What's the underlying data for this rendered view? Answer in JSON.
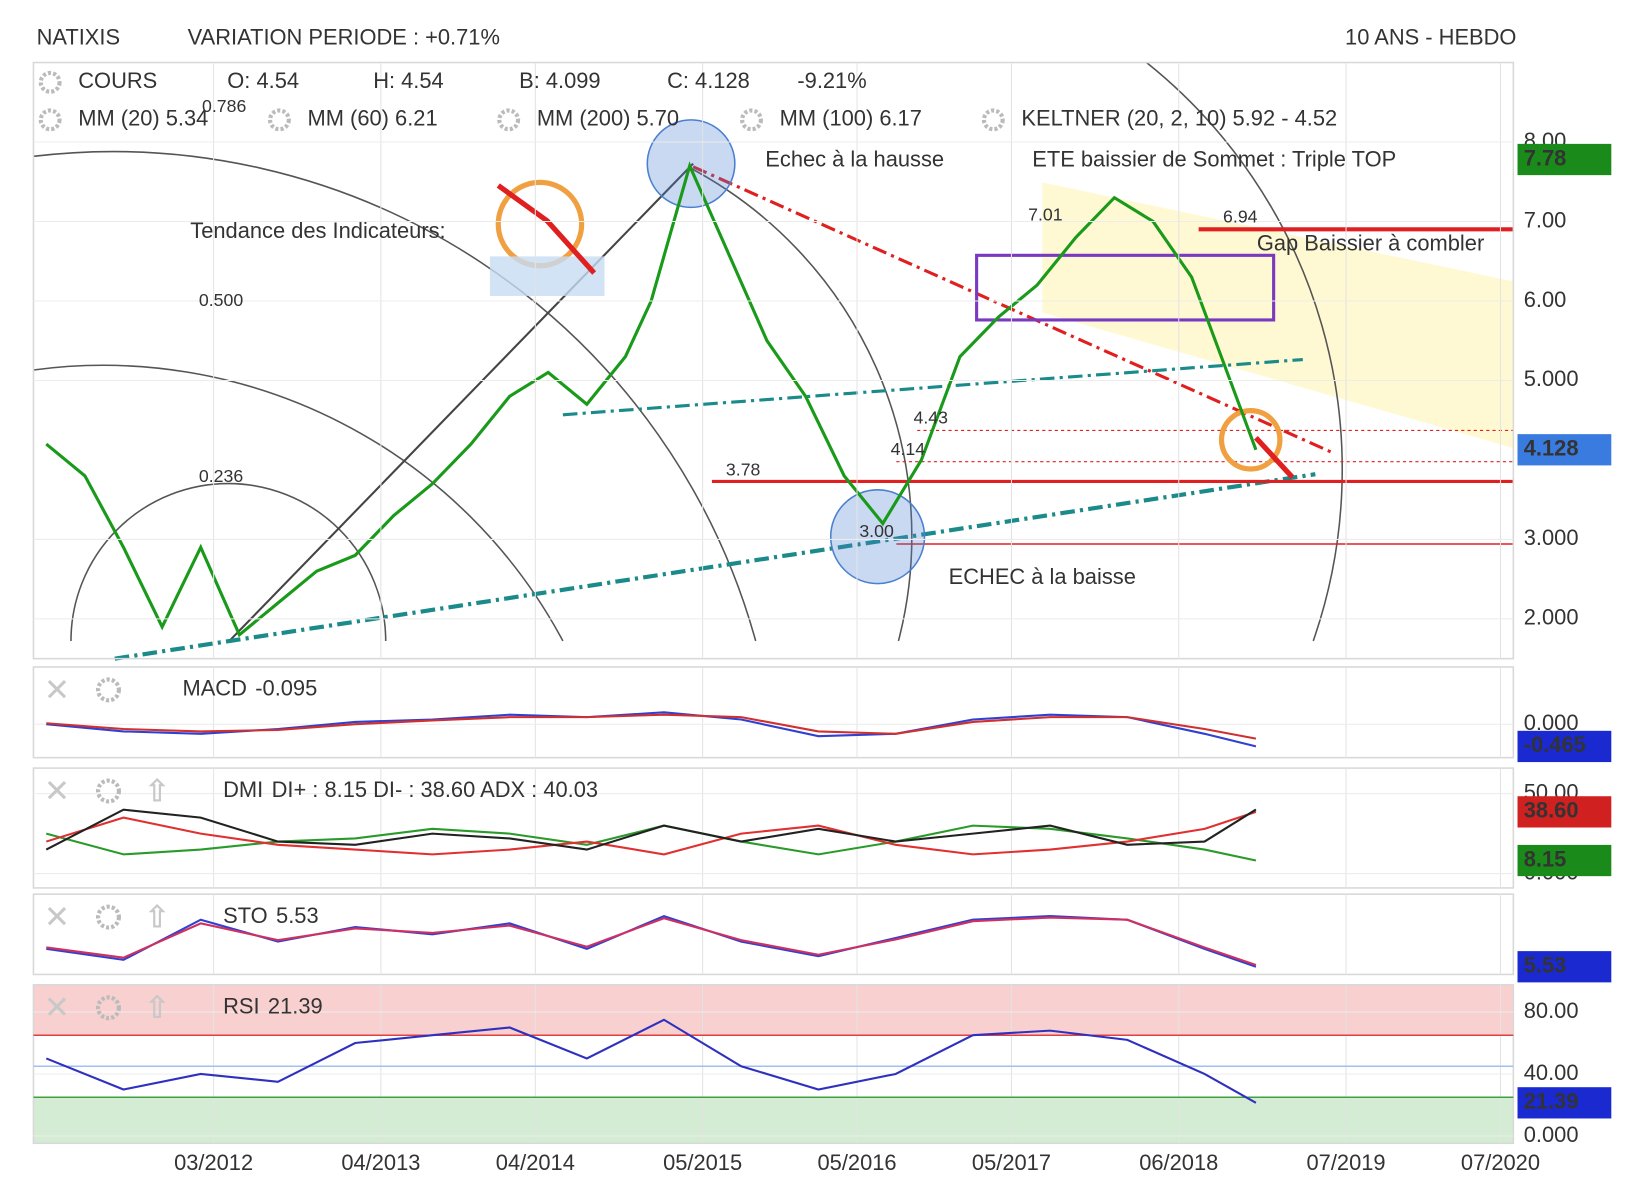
{
  "header": {
    "title": "NATIXIS",
    "variation": "VARIATION PERIODE : +0.71%",
    "period": "10 ANS - HEBDO"
  },
  "chart_data": [
    {
      "type": "line",
      "quote": [
        "O: 4.54",
        "H: 4.54",
        "B: 4.099",
        "C: 4.128",
        "-9.21%"
      ],
      "indicators": [
        {
          "name": "MM (20) 5.34",
          "color": "#e02020"
        },
        {
          "name": "MM (60) 6.21",
          "color": "#f0a020"
        },
        {
          "name": "MM (200) 5.70",
          "color": "#2a9a4a"
        },
        {
          "name": "MM (100) 6.17",
          "color": "#30c0d0"
        },
        {
          "name": "KELTNER (20, 2, 10) 5.92 - 4.52",
          "color": "#1a8a1a"
        }
      ],
      "annotations": [
        "0.786",
        "0.500",
        "0.236",
        "Tendance des Indicateurs:",
        "Echec à la hausse",
        "ETE baissier de Sommet : Triple TOP",
        "7.01",
        "6.94",
        "Gap Baissier à combler",
        "4.43",
        "4.14",
        "3.78",
        "3.00",
        "ECHEC à la baisse"
      ],
      "x": [
        "02/2011",
        "05/2011",
        "08/2011",
        "11/2011",
        "02/2012",
        "05/2012",
        "08/2012",
        "11/2012",
        "02/2013",
        "05/2013",
        "08/2013",
        "11/2013",
        "02/2014",
        "05/2014",
        "08/2014",
        "11/2014",
        "01/2015",
        "04/2015",
        "07/2015",
        "10/2015",
        "01/2016",
        "04/2016",
        "07/2016",
        "10/2016",
        "01/2017",
        "04/2017",
        "07/2017",
        "10/2017",
        "01/2018",
        "04/2018",
        "07/2018",
        "10/2018",
        "12/2018"
      ],
      "series": [
        {
          "name": "COURS",
          "color": "#1a9a1a",
          "values": [
            4.2,
            3.8,
            2.9,
            1.9,
            2.9,
            1.8,
            2.2,
            2.6,
            2.8,
            3.3,
            3.7,
            4.2,
            4.8,
            5.1,
            4.7,
            5.3,
            6.0,
            7.7,
            6.6,
            5.5,
            4.8,
            3.8,
            3.2,
            4.0,
            5.3,
            5.8,
            6.2,
            6.8,
            7.3,
            7.0,
            6.3,
            5.0,
            4.128
          ]
        }
      ],
      "badges": [
        {
          "value": 7.78,
          "color": "#1a8a1a"
        },
        {
          "value": 4.128,
          "color": "#3a7be0"
        }
      ],
      "xlim": [
        "01/2011",
        "08/2020"
      ],
      "xticks": [
        "03/2012",
        "04/2013",
        "04/2014",
        "05/2015",
        "05/2016",
        "05/2017",
        "06/2018",
        "07/2019",
        "07/2020"
      ],
      "ylim": [
        1.5,
        9.0
      ],
      "yticks": [
        {
          "value": 2,
          "label": "2.000"
        },
        {
          "value": 3,
          "label": "3.000"
        },
        {
          "value": 5,
          "label": "5.000"
        },
        {
          "value": 6,
          "label": "6.00"
        },
        {
          "value": 7,
          "label": "7.00"
        },
        {
          "value": 8,
          "label": "8.00"
        }
      ]
    },
    {
      "type": "line",
      "title": "MACD",
      "readout": "-0.095",
      "x": [
        "02/2011",
        "08/2011",
        "02/2012",
        "08/2012",
        "02/2013",
        "08/2013",
        "02/2014",
        "08/2014",
        "02/2015",
        "08/2015",
        "02/2016",
        "08/2016",
        "02/2017",
        "08/2017",
        "02/2018",
        "08/2018",
        "12/2018"
      ],
      "series": [
        {
          "color": "#3040d0",
          "values": [
            0.0,
            -0.15,
            -0.2,
            -0.1,
            0.05,
            0.1,
            0.2,
            0.15,
            0.25,
            0.1,
            -0.25,
            -0.2,
            0.1,
            0.2,
            0.15,
            -0.2,
            -0.465
          ]
        },
        {
          "color": "#d03030",
          "values": [
            0.02,
            -0.1,
            -0.15,
            -0.12,
            0.0,
            0.08,
            0.15,
            0.15,
            0.2,
            0.15,
            -0.15,
            -0.2,
            0.05,
            0.15,
            0.15,
            -0.1,
            -0.3
          ]
        }
      ],
      "badges": [
        {
          "value": -0.465,
          "color": "#1a2ad0"
        }
      ],
      "ylim": [
        -0.7,
        1.2
      ],
      "yticks": [
        {
          "value": 0,
          "label": "0.000"
        }
      ]
    },
    {
      "type": "line",
      "title": "DMI",
      "readout": "DI+ : 8.15 DI- : 38.60 ADX : 40.03",
      "x": [
        "02/2011",
        "08/2011",
        "02/2012",
        "08/2012",
        "02/2013",
        "08/2013",
        "02/2014",
        "08/2014",
        "02/2015",
        "08/2015",
        "02/2016",
        "08/2016",
        "02/2017",
        "08/2017",
        "02/2018",
        "08/2018",
        "12/2018"
      ],
      "series": [
        {
          "color": "#2a9a2a",
          "values": [
            25,
            12,
            15,
            20,
            22,
            28,
            25,
            18,
            30,
            20,
            12,
            20,
            30,
            28,
            22,
            15,
            8.15
          ]
        },
        {
          "color": "#e03030",
          "values": [
            20,
            35,
            25,
            18,
            15,
            12,
            15,
            20,
            12,
            25,
            30,
            18,
            12,
            15,
            20,
            28,
            38.6
          ]
        },
        {
          "color": "#222222",
          "values": [
            15,
            40,
            35,
            20,
            18,
            25,
            22,
            15,
            30,
            20,
            28,
            20,
            25,
            30,
            18,
            20,
            40.03
          ]
        }
      ],
      "badges": [
        {
          "value": 38.6,
          "label": "38.60",
          "color": "#d02020"
        },
        {
          "value": 8.15,
          "color": "#1a8a1a"
        }
      ],
      "ylim": [
        -9,
        66
      ],
      "yticks": [
        {
          "value": 0,
          "label": "0.000"
        },
        {
          "value": 50,
          "label": "50.00"
        }
      ]
    },
    {
      "type": "line",
      "title": "STO",
      "readout": "5.53",
      "x": [
        "02/2011",
        "08/2011",
        "02/2012",
        "08/2012",
        "02/2013",
        "08/2013",
        "02/2014",
        "08/2014",
        "02/2015",
        "08/2015",
        "02/2016",
        "08/2016",
        "02/2017",
        "08/2017",
        "02/2018",
        "08/2018",
        "12/2018"
      ],
      "series": [
        {
          "color": "#3040d0",
          "values": [
            30,
            15,
            70,
            40,
            60,
            50,
            65,
            30,
            75,
            40,
            20,
            45,
            70,
            75,
            70,
            30,
            5.53
          ]
        },
        {
          "color": "#d03060",
          "values": [
            32,
            18,
            65,
            42,
            58,
            52,
            62,
            33,
            72,
            42,
            22,
            43,
            68,
            73,
            70,
            32,
            8
          ]
        }
      ],
      "badges": [
        {
          "value": 5.53,
          "color": "#1a2ad0"
        }
      ],
      "ylim": [
        -5,
        105
      ],
      "yticks": []
    },
    {
      "type": "line",
      "title": "RSI",
      "readout": "21.39",
      "x": [
        "02/2011",
        "08/2011",
        "02/2012",
        "08/2012",
        "02/2013",
        "08/2013",
        "02/2014",
        "08/2014",
        "02/2015",
        "08/2015",
        "02/2016",
        "08/2016",
        "02/2017",
        "08/2017",
        "02/2018",
        "08/2018",
        "12/2018"
      ],
      "series": [
        {
          "color": "#3030c0",
          "values": [
            50,
            30,
            40,
            35,
            60,
            65,
            70,
            50,
            75,
            45,
            30,
            40,
            65,
            68,
            62,
            40,
            21.39
          ]
        }
      ],
      "levels": [
        65,
        45,
        25
      ],
      "badges": [
        {
          "value": 21.39,
          "color": "#1a2ad0"
        }
      ],
      "ylim": [
        -4.7,
        97.5
      ],
      "yticks": [
        {
          "value": 0,
          "label": "0.000"
        },
        {
          "value": 40,
          "label": "40.00"
        },
        {
          "value": 80,
          "label": "80.00"
        }
      ]
    }
  ]
}
